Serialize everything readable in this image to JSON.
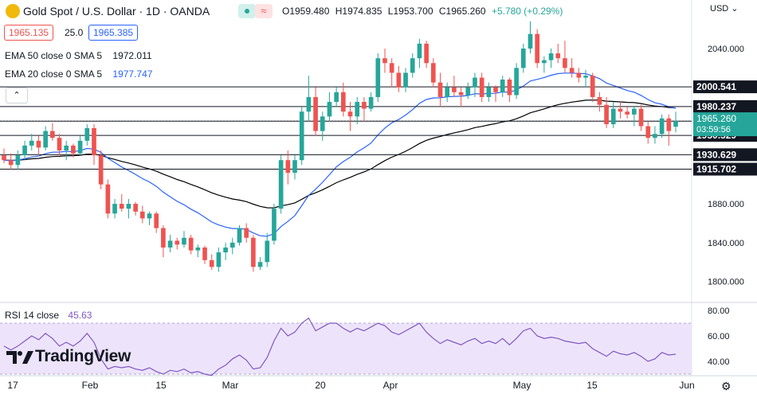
{
  "header": {
    "symbol": "Gold Spot / U.S. Dollar · 1D · OANDA",
    "open": "O1959.480",
    "high": "H1974.835",
    "low": "L1953.700",
    "close": "C1965.260",
    "change": "+5.780 (+0.29%)",
    "bid": "1965.135",
    "spread": "25.0",
    "ask": "1965.385",
    "currency": "USD"
  },
  "indicators": {
    "ema50_label": "EMA 50 close 0 SMA 5",
    "ema50_value": "1972.011",
    "ema20_label": "EMA 20 close 0 SMA 5",
    "ema20_value": "1977.747",
    "rsi_label": "RSI 14 close",
    "rsi_value": "45.63"
  },
  "branding": {
    "logo": "TradingView"
  },
  "colors": {
    "up": "#26a69a",
    "down": "#ef5350",
    "ema20": "#2962ff",
    "ema50": "#000000",
    "rsi": "#7e57c2",
    "rsi_band": "#ede4fb"
  },
  "chart_data": {
    "type": "candlestick",
    "ylim": [
      1780,
      2090
    ],
    "price_ticks": [
      "2040.000",
      "1880.000",
      "1840.000",
      "1800.000"
    ],
    "x_tick_labels": [
      "17",
      "Feb",
      "15",
      "Mar",
      "20",
      "Apr",
      "May",
      "15",
      "Jun"
    ],
    "levels": [
      {
        "label": "2000.541",
        "value": 2000.541
      },
      {
        "label": "1980.237",
        "value": 1980.237
      },
      {
        "label": "1965.164",
        "value": 1965.164
      },
      {
        "label": "1950.529",
        "value": 1950.529
      },
      {
        "label": "1930.629",
        "value": 1930.629
      },
      {
        "label": "1915.702",
        "value": 1915.702
      }
    ],
    "current_price": "1965.260",
    "countdown": "03:59:56",
    "ohlc": [
      [
        1930,
        1937,
        1922,
        1925
      ],
      [
        1925,
        1932,
        1915,
        1920
      ],
      [
        1920,
        1935,
        1915,
        1930
      ],
      [
        1930,
        1945,
        1925,
        1940
      ],
      [
        1940,
        1952,
        1935,
        1945
      ],
      [
        1945,
        1950,
        1930,
        1938
      ],
      [
        1938,
        1960,
        1935,
        1955
      ],
      [
        1955,
        1963,
        1945,
        1948
      ],
      [
        1948,
        1952,
        1930,
        1935
      ],
      [
        1935,
        1945,
        1925,
        1940
      ],
      [
        1940,
        1942,
        1928,
        1932
      ],
      [
        1932,
        1950,
        1930,
        1945
      ],
      [
        1945,
        1962,
        1940,
        1958
      ],
      [
        1958,
        1962,
        1920,
        1930
      ],
      [
        1930,
        1935,
        1895,
        1900
      ],
      [
        1900,
        1905,
        1865,
        1870
      ],
      [
        1870,
        1885,
        1865,
        1880
      ],
      [
        1880,
        1890,
        1872,
        1875
      ],
      [
        1875,
        1885,
        1865,
        1880
      ],
      [
        1880,
        1882,
        1868,
        1872
      ],
      [
        1872,
        1878,
        1860,
        1865
      ],
      [
        1865,
        1872,
        1858,
        1870
      ],
      [
        1870,
        1872,
        1850,
        1855
      ],
      [
        1855,
        1858,
        1825,
        1835
      ],
      [
        1835,
        1848,
        1830,
        1842
      ],
      [
        1842,
        1845,
        1833,
        1838
      ],
      [
        1838,
        1852,
        1835,
        1845
      ],
      [
        1845,
        1848,
        1828,
        1832
      ],
      [
        1832,
        1838,
        1825,
        1835
      ],
      [
        1835,
        1837,
        1818,
        1822
      ],
      [
        1822,
        1828,
        1812,
        1815
      ],
      [
        1815,
        1835,
        1810,
        1830
      ],
      [
        1830,
        1840,
        1822,
        1835
      ],
      [
        1835,
        1845,
        1828,
        1840
      ],
      [
        1840,
        1858,
        1837,
        1855
      ],
      [
        1855,
        1860,
        1840,
        1845
      ],
      [
        1845,
        1848,
        1810,
        1815
      ],
      [
        1815,
        1825,
        1812,
        1820
      ],
      [
        1820,
        1850,
        1815,
        1842
      ],
      [
        1842,
        1880,
        1838,
        1875
      ],
      [
        1875,
        1930,
        1870,
        1925
      ],
      [
        1925,
        1935,
        1900,
        1912
      ],
      [
        1912,
        1930,
        1905,
        1925
      ],
      [
        1925,
        1980,
        1920,
        1975
      ],
      [
        1975,
        2012,
        1965,
        1990
      ],
      [
        1990,
        2000,
        1950,
        1955
      ],
      [
        1955,
        1975,
        1945,
        1970
      ],
      [
        1970,
        1995,
        1965,
        1985
      ],
      [
        1985,
        2000,
        1980,
        1995
      ],
      [
        1995,
        2005,
        1970,
        1975
      ],
      [
        1975,
        1985,
        1955,
        1970
      ],
      [
        1970,
        1990,
        1962,
        1985
      ],
      [
        1985,
        1990,
        1965,
        1978
      ],
      [
        1978,
        1995,
        1975,
        1990
      ],
      [
        1990,
        2035,
        1985,
        2030
      ],
      [
        2030,
        2040,
        2015,
        2025
      ],
      [
        2025,
        2030,
        2000,
        2015
      ],
      [
        2015,
        2022,
        1995,
        2000
      ],
      [
        2000,
        2020,
        1995,
        2015
      ],
      [
        2015,
        2035,
        2010,
        2030
      ],
      [
        2030,
        2050,
        2020,
        2045
      ],
      [
        2045,
        2048,
        2020,
        2025
      ],
      [
        2025,
        2030,
        2000,
        2005
      ],
      [
        2005,
        2015,
        1980,
        1990
      ],
      [
        1990,
        2005,
        1985,
        2000
      ],
      [
        2000,
        2012,
        1990,
        1995
      ],
      [
        1995,
        2000,
        1980,
        1992
      ],
      [
        1992,
        2005,
        1988,
        2000
      ],
      [
        2000,
        2015,
        1990,
        2010
      ],
      [
        2010,
        2015,
        1985,
        1990
      ],
      [
        1990,
        2005,
        1985,
        2000
      ],
      [
        2000,
        2002,
        1985,
        1995
      ],
      [
        1995,
        2012,
        1990,
        2008
      ],
      [
        2008,
        2010,
        1985,
        1992
      ],
      [
        1992,
        2025,
        1988,
        2020
      ],
      [
        2020,
        2045,
        2015,
        2040
      ],
      [
        2040,
        2068,
        2035,
        2055
      ],
      [
        2055,
        2060,
        2020,
        2025
      ],
      [
        2025,
        2032,
        2015,
        2028
      ],
      [
        2028,
        2040,
        2020,
        2035
      ],
      [
        2035,
        2045,
        2025,
        2030
      ],
      [
        2030,
        2048,
        2015,
        2020
      ],
      [
        2020,
        2030,
        2010,
        2015
      ],
      [
        2015,
        2020,
        2005,
        2010
      ],
      [
        2010,
        2018,
        2000,
        2012
      ],
      [
        2012,
        2015,
        1985,
        1990
      ],
      [
        1990,
        1995,
        1975,
        1982
      ],
      [
        1982,
        1990,
        1958,
        1962
      ],
      [
        1962,
        1985,
        1958,
        1978
      ],
      [
        1978,
        1985,
        1968,
        1975
      ],
      [
        1975,
        1980,
        1968,
        1972
      ],
      [
        1972,
        1980,
        1960,
        1978
      ],
      [
        1978,
        1982,
        1955,
        1960
      ],
      [
        1960,
        1965,
        1942,
        1948
      ],
      [
        1948,
        1960,
        1942,
        1952
      ],
      [
        1952,
        1972,
        1948,
        1968
      ],
      [
        1968,
        1972,
        1940,
        1955
      ],
      [
        1959.48,
        1974.835,
        1953.7,
        1965.26
      ]
    ],
    "rsi": {
      "ylim": [
        30,
        85
      ],
      "ticks": [
        "80.00",
        "60.00",
        "40.00"
      ],
      "series": [
        52,
        49,
        52,
        56,
        60,
        57,
        62,
        58,
        52,
        55,
        52,
        56,
        62,
        55,
        42,
        34,
        36,
        35,
        36,
        34,
        33,
        35,
        32,
        30,
        33,
        32,
        34,
        31,
        32,
        30,
        29,
        34,
        37,
        42,
        45,
        41,
        34,
        35,
        43,
        56,
        66,
        60,
        63,
        70,
        74,
        64,
        67,
        70,
        70,
        66,
        63,
        66,
        64,
        67,
        70,
        68,
        63,
        61,
        64,
        67,
        70,
        63,
        58,
        54,
        57,
        55,
        53,
        56,
        58,
        54,
        56,
        54,
        58,
        53,
        58,
        64,
        66,
        60,
        58,
        59,
        58,
        56,
        55,
        54,
        55,
        50,
        47,
        44,
        48,
        46,
        45,
        47,
        44,
        40,
        42,
        47,
        45,
        45.63
      ]
    }
  }
}
